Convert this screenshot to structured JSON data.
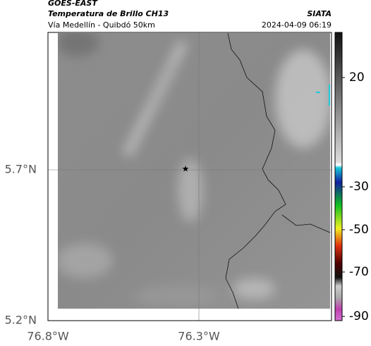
{
  "header": {
    "title": "GOES-EAST",
    "subtitle": "Temperatura de Brillo CH13",
    "route": "Vía Medellín - Quibdó 50km",
    "agency": "SIATA",
    "datetime": "2024-04-09 06:19"
  },
  "map": {
    "lat_labels": [
      "5.7°N",
      "5.2°N"
    ],
    "lon_labels": [
      "76.8°W",
      "76.3°W"
    ]
  },
  "colorbar": {
    "tick_labels": [
      "20",
      "-30",
      "-50",
      "-70",
      "-90"
    ]
  }
}
